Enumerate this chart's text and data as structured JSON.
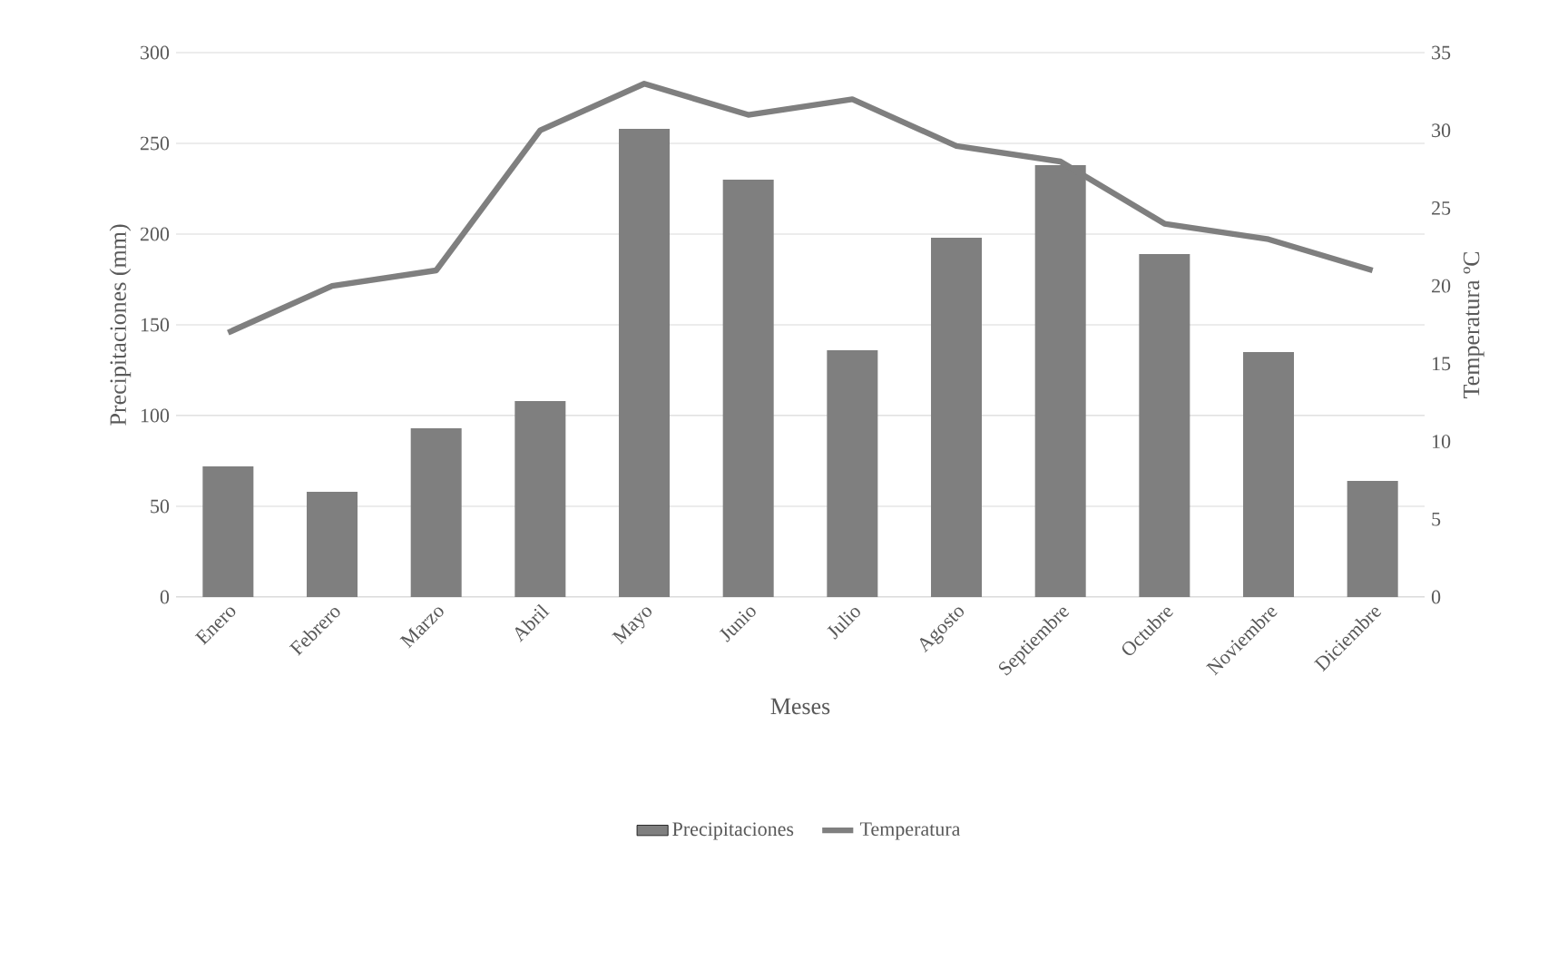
{
  "chart_data": {
    "type": "bar",
    "xlabel": "Meses",
    "ylabel": "Precipitaciones (mm)",
    "y2label": "Temperatura ºC",
    "categories": [
      "Enero",
      "Febrero",
      "Marzo",
      "Abril",
      "Mayo",
      "Junio",
      "Julio",
      "Agosto",
      "Septiembre",
      "Octubre",
      "Noviembre",
      "Diciembre"
    ],
    "series": [
      {
        "name": "Precipitaciones",
        "color": "#7f7f7f",
        "values": [
          72,
          58,
          93,
          108,
          258,
          230,
          136,
          198,
          238,
          189,
          135,
          64
        ]
      },
      {
        "name": "Temperatura",
        "type": "line",
        "axis": "y2",
        "color": "#7f7f7f",
        "values": [
          17,
          20,
          21,
          30,
          33,
          31,
          32,
          29,
          28,
          24,
          23,
          21
        ]
      }
    ],
    "ylim": [
      0,
      300
    ],
    "yticks": [
      0,
      50,
      100,
      150,
      200,
      250,
      300
    ],
    "y2lim": [
      0,
      35
    ],
    "y2ticks": [
      0,
      5,
      10,
      15,
      20,
      25,
      30,
      35
    ],
    "grid": "y",
    "legend": "bottom"
  }
}
